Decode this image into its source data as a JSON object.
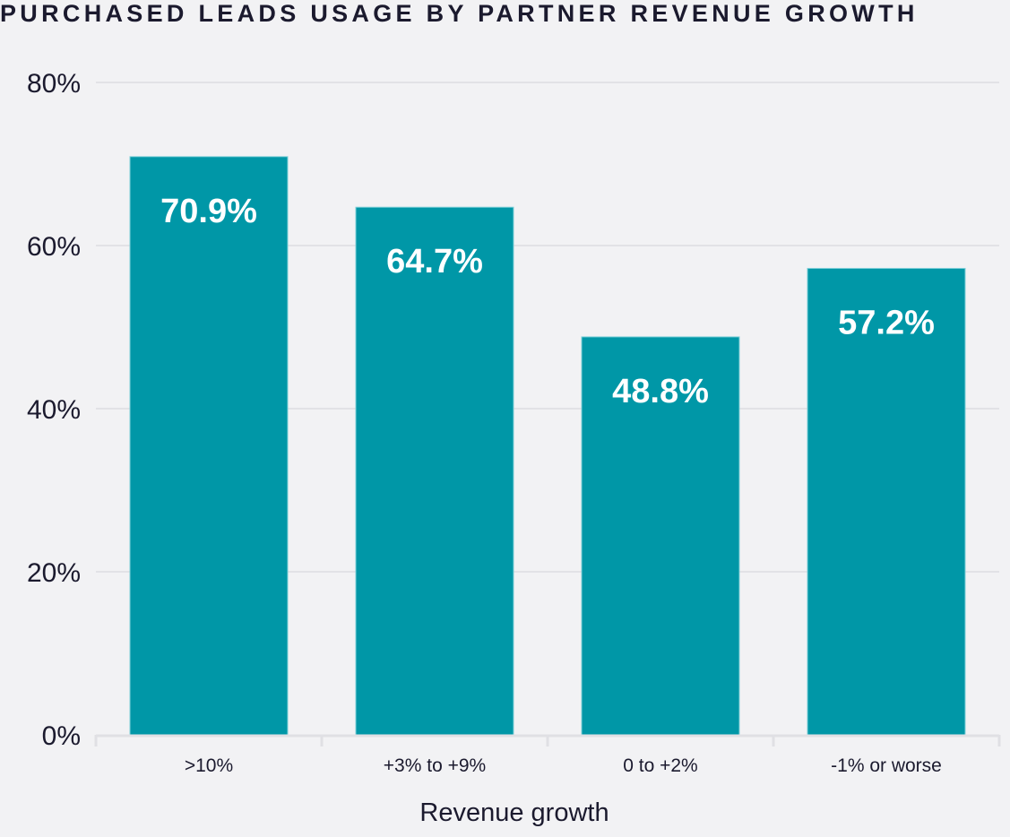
{
  "chart_data": {
    "type": "bar",
    "title": "PURCHASED LEADS USAGE BY PARTNER REVENUE GROWTH",
    "xlabel": "Revenue growth",
    "ylabel": "",
    "categories": [
      ">10%",
      "+3% to +9%",
      "0 to +2%",
      "-1% or worse"
    ],
    "values": [
      70.9,
      64.7,
      48.8,
      57.2
    ],
    "data_labels": [
      "70.9%",
      "64.7%",
      "48.8%",
      "57.2%"
    ],
    "ylim": [
      0,
      80
    ],
    "yticks": [
      0,
      20,
      40,
      60,
      80
    ],
    "ytick_labels": [
      "0%",
      "20%",
      "40%",
      "60%",
      "80%"
    ],
    "grid": true,
    "legend": "none",
    "colors": {
      "bar": "#0097a7",
      "background": "#f2f2f4",
      "text": "#1b1a2e",
      "grid": "#e2e2e6"
    }
  }
}
